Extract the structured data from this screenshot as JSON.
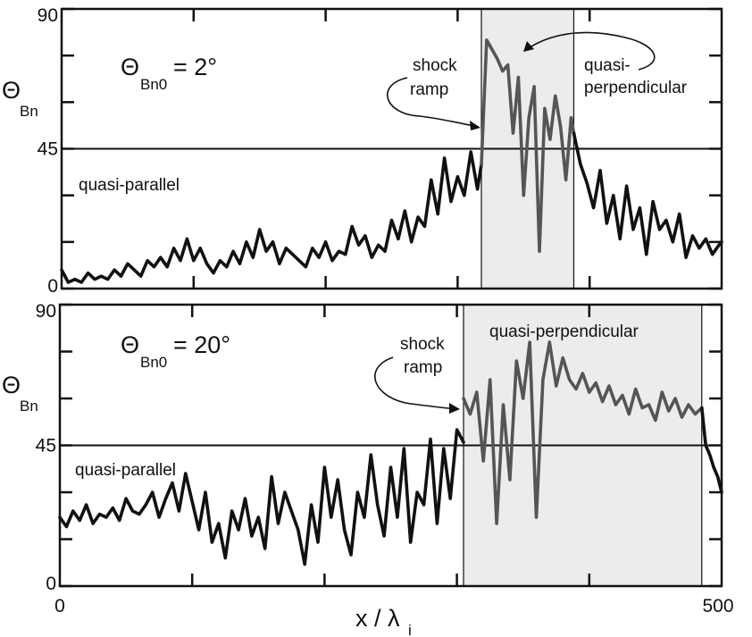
{
  "chart_data": [
    {
      "type": "line",
      "panel": "top",
      "annotation_theta": "Θ",
      "annotation_sub": "Bn0",
      "annotation_value": "= 2°",
      "ylabel_theta": "Θ",
      "ylabel_sub": "Bn",
      "xlim": [
        0,
        500
      ],
      "ylim": [
        0,
        90
      ],
      "yticks": [
        "0",
        "45",
        "90"
      ],
      "reference_line": 45,
      "shaded_region": [
        318,
        388
      ],
      "labels": {
        "quasi_parallel": "quasi-parallel",
        "shock": "shock",
        "ramp": "ramp",
        "quasi_perp_1": "quasi-",
        "quasi_perp_2": "perpendicular"
      },
      "series": [
        {
          "color": "#111111",
          "x": [
            0,
            5,
            10,
            15,
            20,
            25,
            30,
            35,
            40,
            45,
            50,
            55,
            60,
            65,
            70,
            75,
            80,
            85,
            90,
            95,
            100,
            105,
            110,
            115,
            120,
            125,
            130,
            135,
            140,
            145,
            150,
            155,
            160,
            165,
            170,
            175,
            180,
            185,
            190,
            195,
            200,
            205,
            210,
            215,
            220,
            225,
            230,
            235,
            240,
            245,
            250,
            255,
            260,
            265,
            270,
            275,
            280,
            285,
            290,
            295,
            300,
            305,
            310,
            315,
            318
          ],
          "y": [
            6,
            2,
            3,
            2,
            5,
            3,
            4,
            3,
            6,
            4,
            8,
            6,
            4,
            9,
            7,
            10,
            7,
            13,
            9,
            16,
            9,
            13,
            8,
            5,
            9,
            7,
            12,
            8,
            15,
            10,
            19,
            12,
            15,
            8,
            13,
            11,
            9,
            7,
            13,
            10,
            15,
            9,
            12,
            11,
            20,
            14,
            17,
            10,
            14,
            12,
            22,
            16,
            25,
            15,
            23,
            20,
            35,
            24,
            42,
            28,
            36,
            30,
            44,
            32,
            40
          ]
        },
        {
          "color": "#555555",
          "x": [
            318,
            322,
            326,
            330,
            334,
            338,
            342,
            346,
            350,
            354,
            358,
            362,
            366,
            370,
            374,
            378,
            382,
            386,
            388
          ],
          "y": [
            40,
            80,
            77,
            74,
            70,
            72,
            50,
            68,
            30,
            55,
            65,
            12,
            58,
            48,
            62,
            52,
            35,
            55,
            50
          ]
        },
        {
          "color": "#111111",
          "x": [
            388,
            393,
            398,
            403,
            408,
            413,
            418,
            423,
            428,
            433,
            438,
            443,
            448,
            453,
            458,
            463,
            468,
            473,
            478,
            483,
            488,
            493,
            498,
            500
          ],
          "y": [
            50,
            40,
            34,
            26,
            38,
            21,
            30,
            16,
            33,
            19,
            26,
            11,
            28,
            19,
            22,
            15,
            24,
            10,
            17,
            13,
            16,
            11,
            14,
            15
          ]
        }
      ]
    },
    {
      "type": "line",
      "panel": "bottom",
      "annotation_theta": "Θ",
      "annotation_sub": "Bn0",
      "annotation_value": "= 20°",
      "ylabel_theta": "Θ",
      "ylabel_sub": "Bn",
      "xlabel": "x / λ",
      "xlabel_sub": "i",
      "xlim": [
        0,
        500
      ],
      "ylim": [
        0,
        90
      ],
      "xticks": [
        "0",
        "500"
      ],
      "yticks": [
        "0",
        "45",
        "90"
      ],
      "reference_line": 45,
      "shaded_region": [
        305,
        485
      ],
      "labels": {
        "quasi_parallel": "quasi-parallel",
        "shock": "shock",
        "ramp": "ramp",
        "quasi_perp": "quasi-perpendicular"
      },
      "series": [
        {
          "color": "#111111",
          "x": [
            0,
            5,
            10,
            15,
            20,
            25,
            30,
            35,
            40,
            45,
            50,
            55,
            60,
            65,
            70,
            75,
            80,
            85,
            90,
            95,
            100,
            105,
            110,
            115,
            120,
            125,
            130,
            135,
            140,
            145,
            150,
            155,
            160,
            165,
            170,
            175,
            180,
            185,
            190,
            195,
            200,
            205,
            210,
            215,
            220,
            225,
            230,
            235,
            240,
            245,
            250,
            255,
            260,
            265,
            270,
            275,
            280,
            285,
            290,
            295,
            300,
            305
          ],
          "y": [
            22,
            19,
            24,
            21,
            26,
            20,
            23,
            22,
            25,
            21,
            28,
            24,
            23,
            26,
            30,
            22,
            28,
            33,
            24,
            36,
            27,
            18,
            30,
            14,
            20,
            9,
            24,
            18,
            28,
            16,
            22,
            12,
            35,
            20,
            30,
            24,
            18,
            7,
            26,
            14,
            38,
            22,
            34,
            18,
            10,
            30,
            22,
            42,
            26,
            16,
            38,
            22,
            44,
            14,
            30,
            26,
            47,
            20,
            44,
            28,
            50,
            46
          ]
        },
        {
          "color": "#555555",
          "x": [
            305,
            310,
            315,
            320,
            325,
            330,
            335,
            340,
            345,
            350,
            355,
            360,
            365,
            370,
            375,
            380,
            385,
            390,
            395,
            400,
            405,
            410,
            415,
            420,
            425,
            430,
            435,
            440,
            445,
            450,
            455,
            460,
            465,
            470,
            475,
            480,
            485
          ],
          "y": [
            60,
            55,
            62,
            40,
            66,
            20,
            58,
            34,
            72,
            60,
            78,
            22,
            66,
            78,
            64,
            73,
            66,
            63,
            68,
            62,
            65,
            59,
            64,
            58,
            61,
            55,
            63,
            57,
            58,
            53,
            62,
            56,
            60,
            54,
            58,
            55,
            57
          ]
        },
        {
          "color": "#111111",
          "x": [
            485,
            488,
            491,
            494,
            497,
            500
          ],
          "y": [
            57,
            45,
            42,
            38,
            35,
            30
          ]
        }
      ]
    }
  ]
}
